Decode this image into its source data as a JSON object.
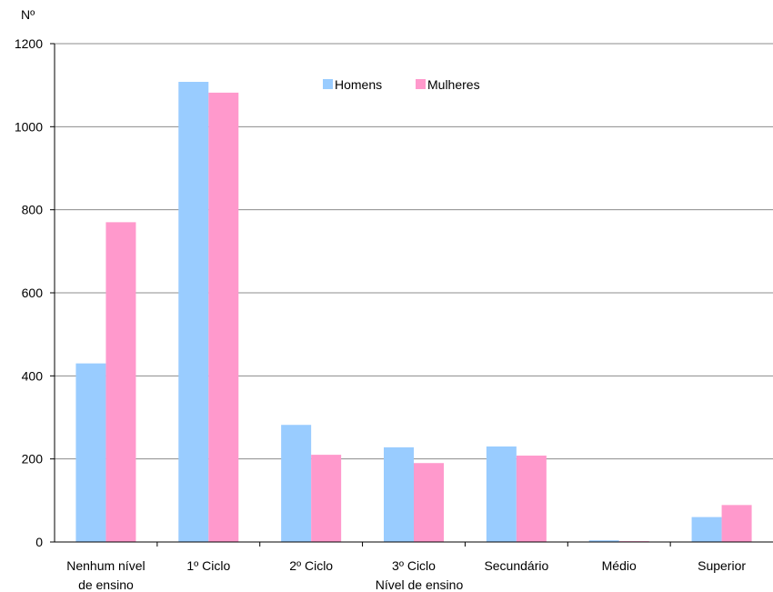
{
  "chart_data": {
    "type": "bar",
    "ylabel": "Nº",
    "xlabel": "Nível de ensino",
    "ylim": [
      0,
      1200
    ],
    "yticks": [
      0,
      200,
      400,
      600,
      800,
      1000,
      1200
    ],
    "grid": true,
    "legend_position": "top-center",
    "categories": [
      [
        "Nenhum nível",
        "de ensino"
      ],
      [
        "1º Ciclo"
      ],
      [
        "2º Ciclo"
      ],
      [
        "3º Ciclo"
      ],
      [
        "Secundário"
      ],
      [
        "Médio"
      ],
      [
        "Superior"
      ]
    ],
    "series": [
      {
        "name": "Homens",
        "color": "#99ccff",
        "values": [
          430,
          1108,
          282,
          228,
          230,
          4,
          60
        ]
      },
      {
        "name": "Mulheres",
        "color": "#ff99cc",
        "values": [
          770,
          1082,
          210,
          190,
          208,
          2,
          89
        ]
      }
    ]
  }
}
